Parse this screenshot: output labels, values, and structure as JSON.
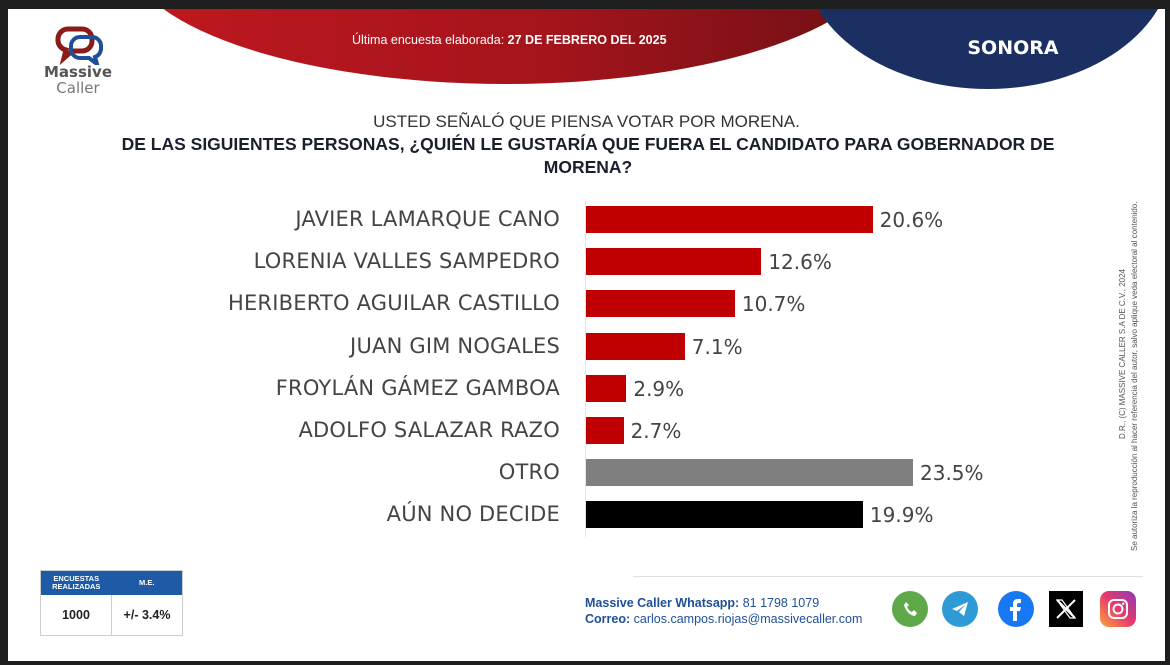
{
  "header": {
    "brand_line1": "Massive",
    "brand_line2": "Caller",
    "survey_date_prefix": "Última encuesta elaborada:",
    "survey_date": "27 DE FEBRERO DEL 2025",
    "region": "SONORA"
  },
  "subtitle": "USTED SEÑALÓ QUE PIENSA VOTAR POR MORENA.",
  "question": "DE LAS SIGUIENTES PERSONAS, ¿QUIÉN LE GUSTARÍA QUE FUERA EL CANDIDATO PARA GOBERNADOR DE MORENA?",
  "chart_data": {
    "type": "bar",
    "orientation": "horizontal",
    "title": "DE LAS SIGUIENTES PERSONAS, ¿QUIÉN LE GUSTARÍA QUE FUERA EL CANDIDATO PARA GOBERNADOR DE MORENA?",
    "subtitle": "USTED SEÑALÓ QUE PIENSA VOTAR POR MORENA.",
    "xlabel": "",
    "ylabel": "",
    "unit": "%",
    "xlim": [
      0,
      23.5
    ],
    "grid": false,
    "categories": [
      "JAVIER LAMARQUE CANO",
      "LORENIA VALLES SAMPEDRO",
      "HERIBERTO AGUILAR CASTILLO",
      "JUAN GIM NOGALES",
      "FROYLÁN GÁMEZ GAMBOA",
      "ADOLFO SALAZAR RAZO",
      "OTRO",
      "AÚN NO DECIDE"
    ],
    "values": [
      20.6,
      12.6,
      10.7,
      7.1,
      2.9,
      2.7,
      23.5,
      19.9
    ],
    "labels": [
      "20.6%",
      "12.6%",
      "10.7%",
      "7.1%",
      "2.9%",
      "2.7%",
      "23.5%",
      "19.9%"
    ],
    "colors": [
      "#c00000",
      "#c00000",
      "#c00000",
      "#c00000",
      "#c00000",
      "#c00000",
      "#7f7f7f",
      "#000000"
    ]
  },
  "side_note": {
    "line1": "D.R., (C) MASSIVE CALLER S.A DE C.V., 2024",
    "line2": "Se autoriza la reproducción al hacer referencia del autor, salvo aplique veda electoral al contenido."
  },
  "stats": {
    "surveys_header": "ENCUESTAS REALIZADAS",
    "me_header": "M.E.",
    "surveys_value": "1000",
    "me_value": "+/- 3.4%"
  },
  "contact": {
    "whatsapp_label": "Massive Caller Whatsapp:",
    "whatsapp_value": "81 1798 1079",
    "email_label": "Correo:",
    "email_value": "carlos.campos.riojas@massivecaller.com"
  },
  "social": [
    "whatsapp-icon",
    "telegram-icon",
    "facebook-icon",
    "x-icon",
    "instagram-icon"
  ]
}
